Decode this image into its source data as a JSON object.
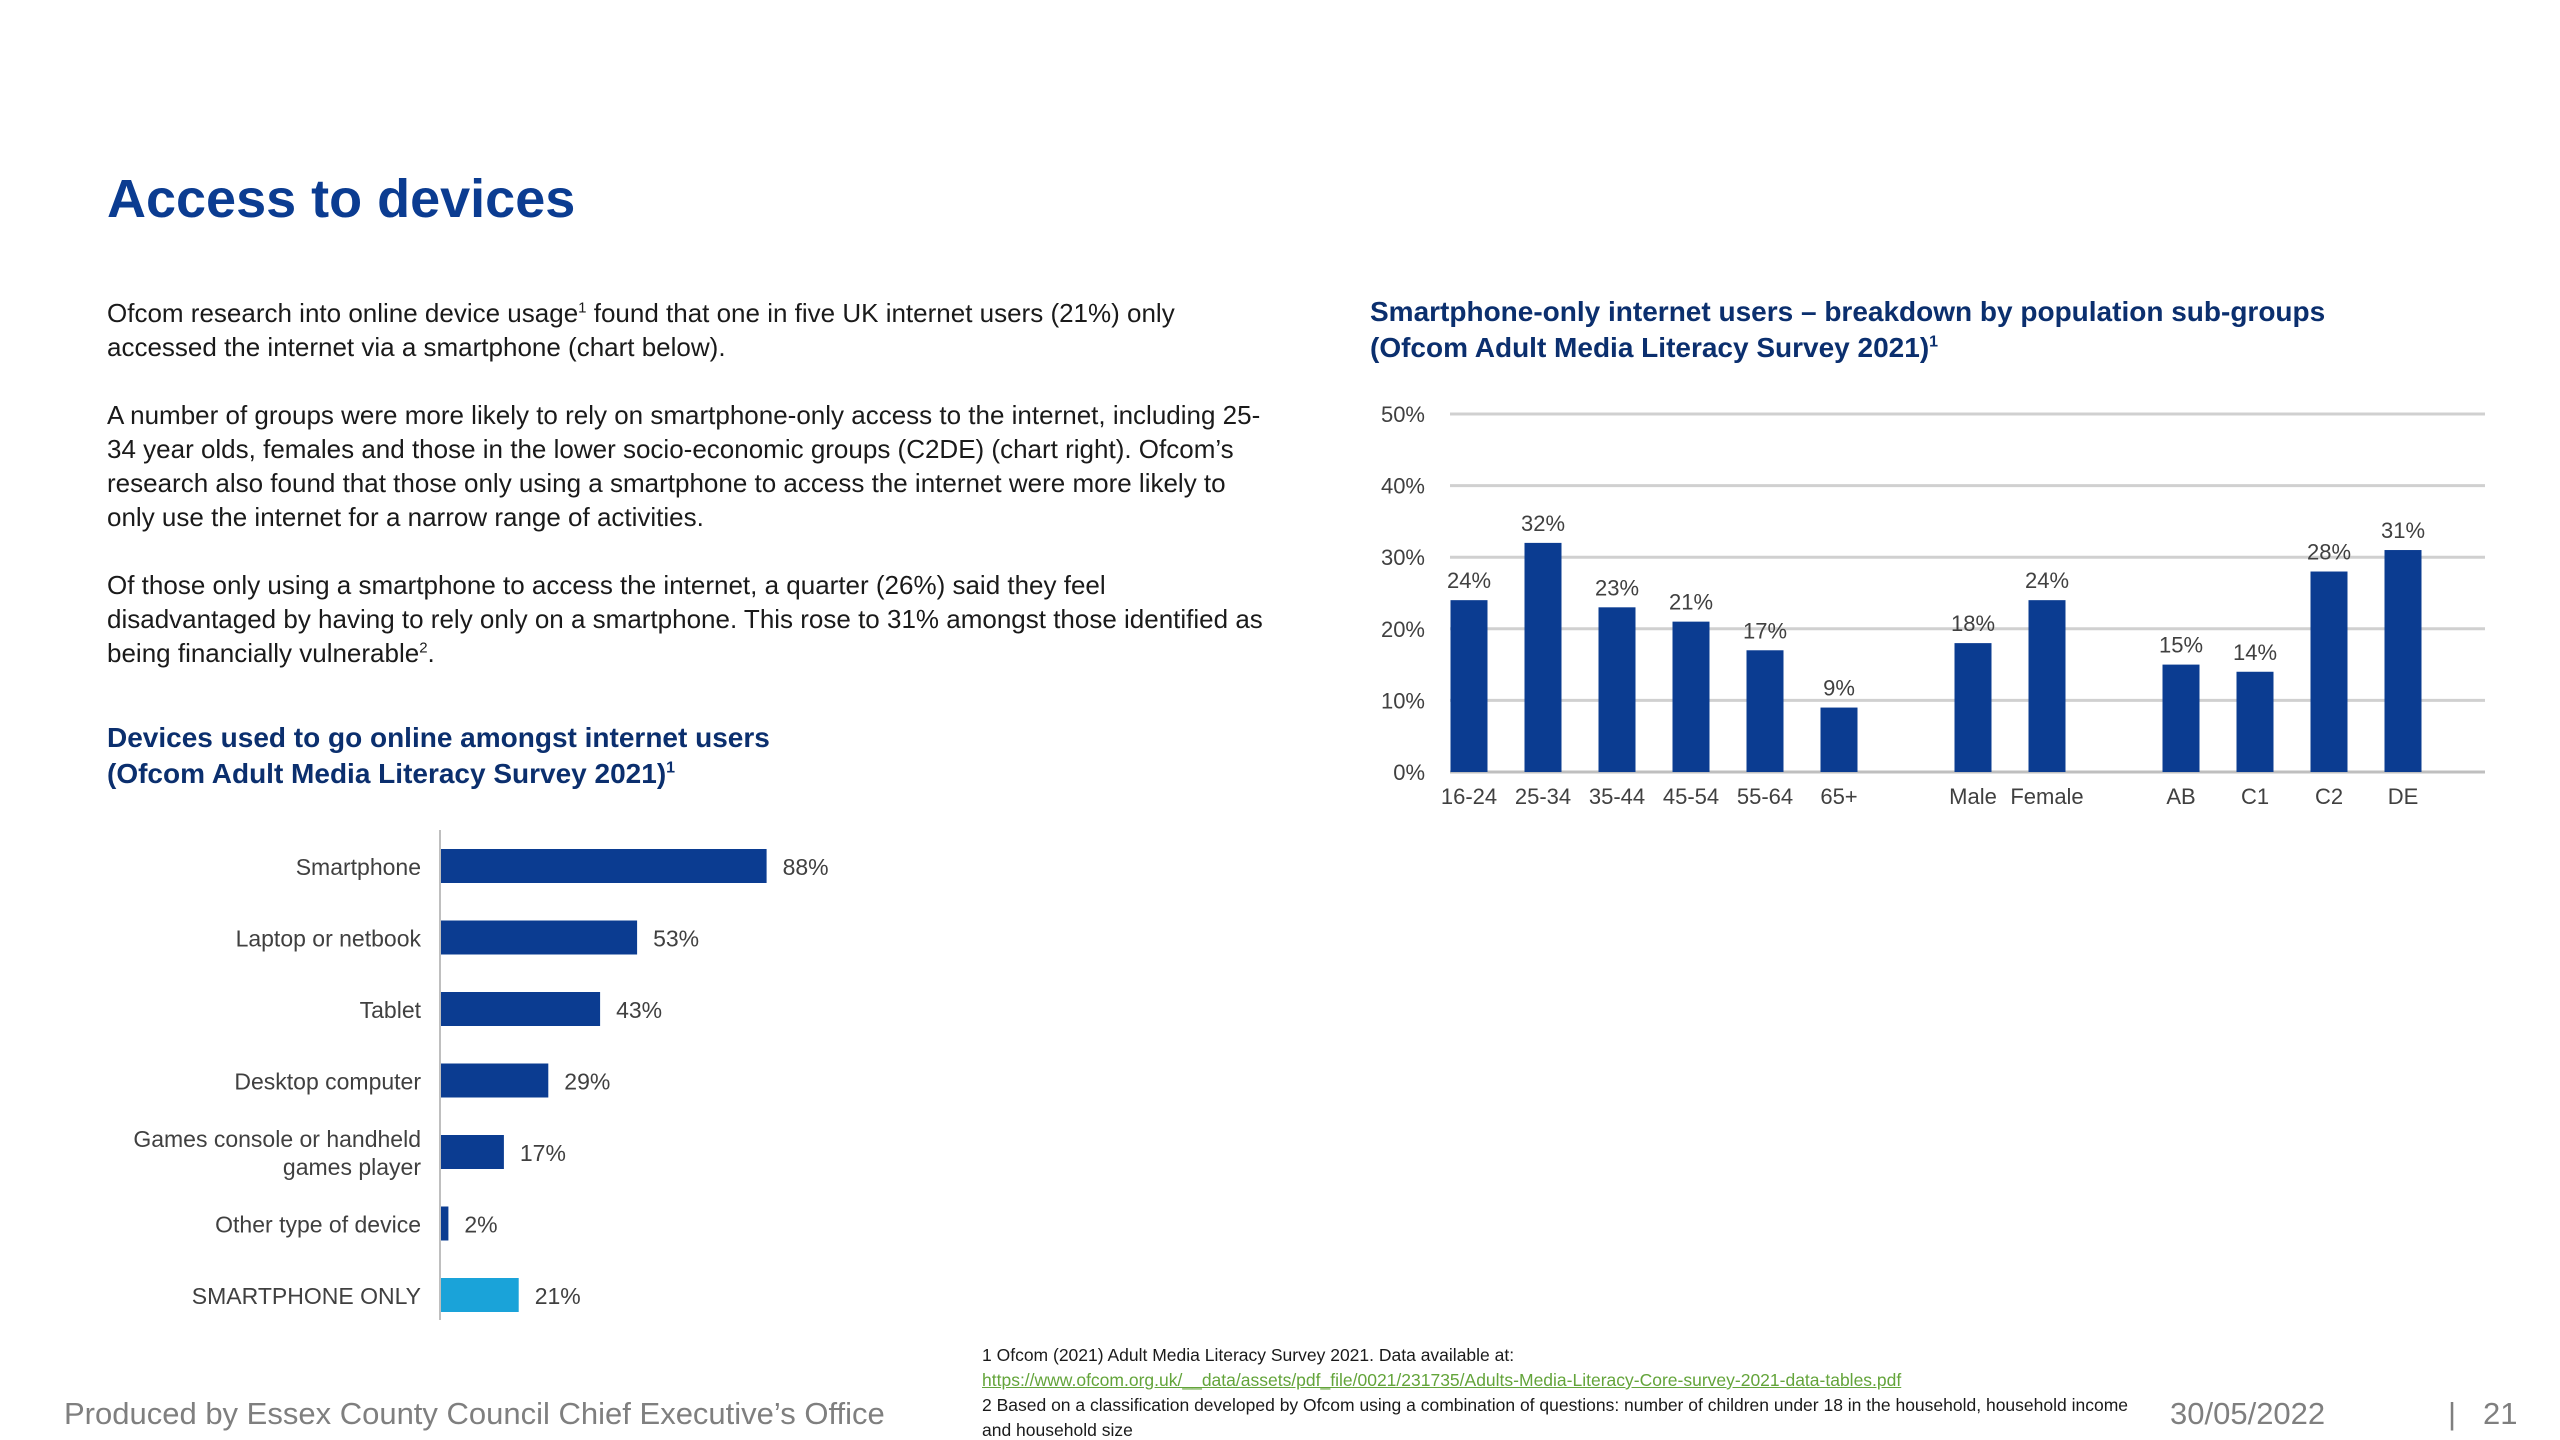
{
  "page": {
    "title": "Access to devices",
    "paragraphs": [
      {
        "before": "Ofcom research into online device usage",
        "sup": "1",
        "after": " found that one in five UK internet users (21%) only accessed the internet via a smartphone (chart below)."
      },
      {
        "before": "A number of groups were more likely to rely on smartphone-only access to the internet, including 25-34 year olds, females and those in the lower socio-economic groups (C2DE) (chart right). Ofcom’s research also found that those only using a smartphone to access the internet were more likely to only use the internet for a narrow range of activities.",
        "sup": "",
        "after": ""
      },
      {
        "before": "Of those only using a smartphone to access the internet, a quarter (26%) said they feel disadvantaged by having to rely only on a smartphone. This rose to 31% amongst those identified as being financially vulnerable",
        "sup": "2",
        "after": "."
      }
    ]
  },
  "left_chart_heading": {
    "line1": "Devices used to go online amongst internet users",
    "line2": "(Ofcom Adult Media Literacy Survey 2021)",
    "sup": "1"
  },
  "right_chart_heading": {
    "line1": "Smartphone-only internet users – breakdown by population sub-groups",
    "line2": "(Ofcom Adult Media Literacy Survey 2021)",
    "sup": "1"
  },
  "colors": {
    "bar_primary": "#0b3c91",
    "bar_highlight": "#1aa3d9",
    "title": "#0b3c91",
    "gridline": "#d0d0d0",
    "axis_text": "#404040",
    "link": "#63a43a"
  },
  "chart_data": [
    {
      "type": "bar",
      "orientation": "horizontal",
      "title": "Devices used to go online amongst internet users (Ofcom Adult Media Literacy Survey 2021)",
      "categories": [
        "Smartphone",
        "Laptop or netbook",
        "Tablet",
        "Desktop computer",
        "Games console or handheld games player",
        "Other type of device",
        "SMARTPHONE ONLY"
      ],
      "category_lines": [
        [
          "Smartphone"
        ],
        [
          "Laptop or netbook"
        ],
        [
          "Tablet"
        ],
        [
          "Desktop computer"
        ],
        [
          "Games console or handheld",
          "games player"
        ],
        [
          "Other type of device"
        ],
        [
          "SMARTPHONE ONLY"
        ]
      ],
      "values": [
        88,
        53,
        43,
        29,
        17,
        2,
        21
      ],
      "labels": [
        "88%",
        "53%",
        "43%",
        "29%",
        "17%",
        "2%",
        "21%"
      ],
      "highlight": [
        false,
        false,
        false,
        false,
        false,
        false,
        true
      ],
      "unit": "%"
    },
    {
      "type": "bar",
      "orientation": "vertical",
      "title": "Smartphone-only internet users – breakdown by population sub-groups (Ofcom Adult Media Literacy Survey 2021)",
      "groups": [
        {
          "categories": [
            "16-24",
            "25-34",
            "35-44",
            "45-54",
            "55-64",
            "65+"
          ],
          "values": [
            24,
            32,
            23,
            21,
            17,
            9
          ]
        },
        {
          "categories": [
            "Male",
            "Female"
          ],
          "values": [
            18,
            24
          ]
        },
        {
          "categories": [
            "AB",
            "C1",
            "C2",
            "DE"
          ],
          "values": [
            15,
            14,
            28,
            31
          ]
        }
      ],
      "ylim": [
        0,
        50
      ],
      "yticks": [
        "0%",
        "10%",
        "20%",
        "30%",
        "40%",
        "50%"
      ],
      "grid": true,
      "unit": "%"
    }
  ],
  "footer": {
    "producer": "Produced by Essex County Council Chief Executive’s Office",
    "footnote1": "1 Ofcom (2021) Adult Media Literacy Survey 2021. Data available at:",
    "footnote1_link": "https://www.ofcom.org.uk/__data/assets/pdf_file/0021/231735/Adults-Media-Literacy-Core-survey-2021-data-tables.pdf",
    "footnote2": "2 Based on a classification developed by Ofcom using a combination of questions: number of children under 18 in the household, household income and household size",
    "date": "30/05/2022",
    "separator": "|",
    "page_number": "21"
  }
}
